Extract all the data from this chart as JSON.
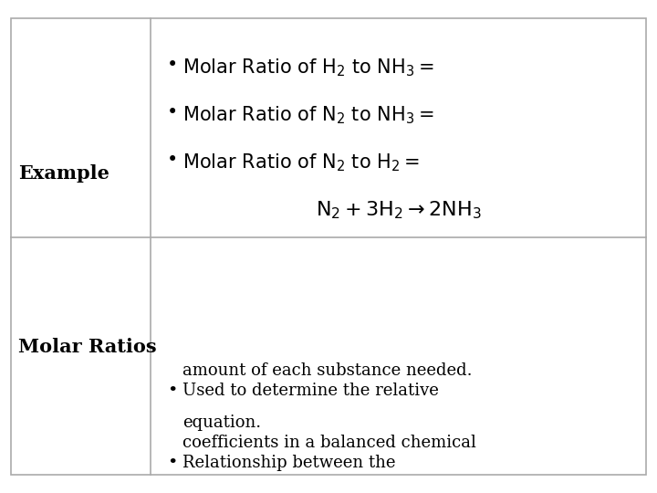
{
  "bg_color": "#ffffff",
  "border_color": "#aaaaaa",
  "row1_label": "Molar Ratios",
  "row2_label": "Example",
  "bullet1_line1": "Relationship between the",
  "bullet1_line2": "coefficients in a balanced chemical",
  "bullet1_line3": "equation.",
  "bullet2_line1": "Used to determine the relative",
  "bullet2_line2": "amount of each substance needed.",
  "label_fontsize": 15,
  "body_fontsize": 13,
  "eq_fontsize": 14
}
